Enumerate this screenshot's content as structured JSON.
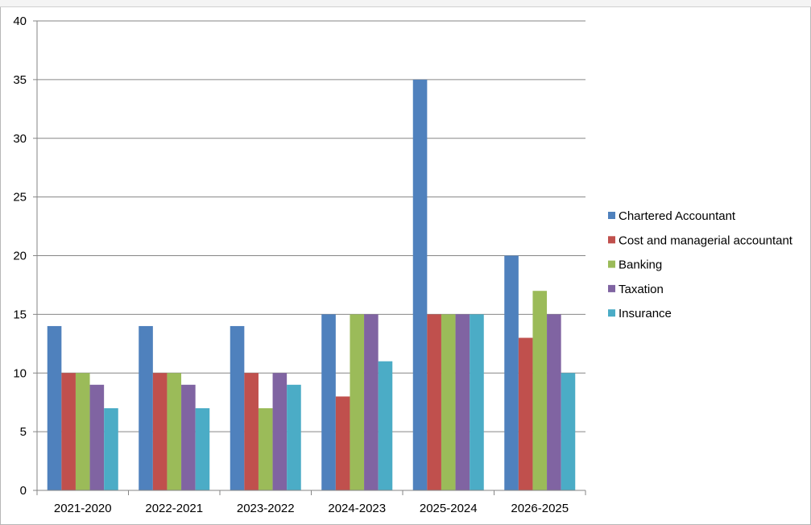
{
  "chart_data": {
    "type": "bar",
    "categories": [
      "2021-2020",
      "2022-2021",
      "2023-2022",
      "2024-2023",
      "2025-2024",
      "2026-2025"
    ],
    "series": [
      {
        "name": "Chartered Accountant",
        "color": "#4F81BD",
        "values": [
          14,
          14,
          14,
          15,
          35,
          20
        ]
      },
      {
        "name": "Cost and managerial accountant",
        "color": "#C0504D",
        "values": [
          10,
          10,
          10,
          8,
          15,
          13
        ]
      },
      {
        "name": "Banking",
        "color": "#9BBB59",
        "values": [
          10,
          10,
          7,
          15,
          15,
          17
        ]
      },
      {
        "name": "Taxation",
        "color": "#8064A2",
        "values": [
          9,
          9,
          10,
          15,
          15,
          15
        ]
      },
      {
        "name": "Insurance",
        "color": "#4BACC6",
        "values": [
          7,
          7,
          9,
          11,
          15,
          10
        ]
      }
    ],
    "ylim": [
      0,
      40
    ],
    "yticks": [
      0,
      5,
      10,
      15,
      20,
      25,
      30,
      35,
      40
    ],
    "grid": true,
    "legend_position": "right"
  }
}
